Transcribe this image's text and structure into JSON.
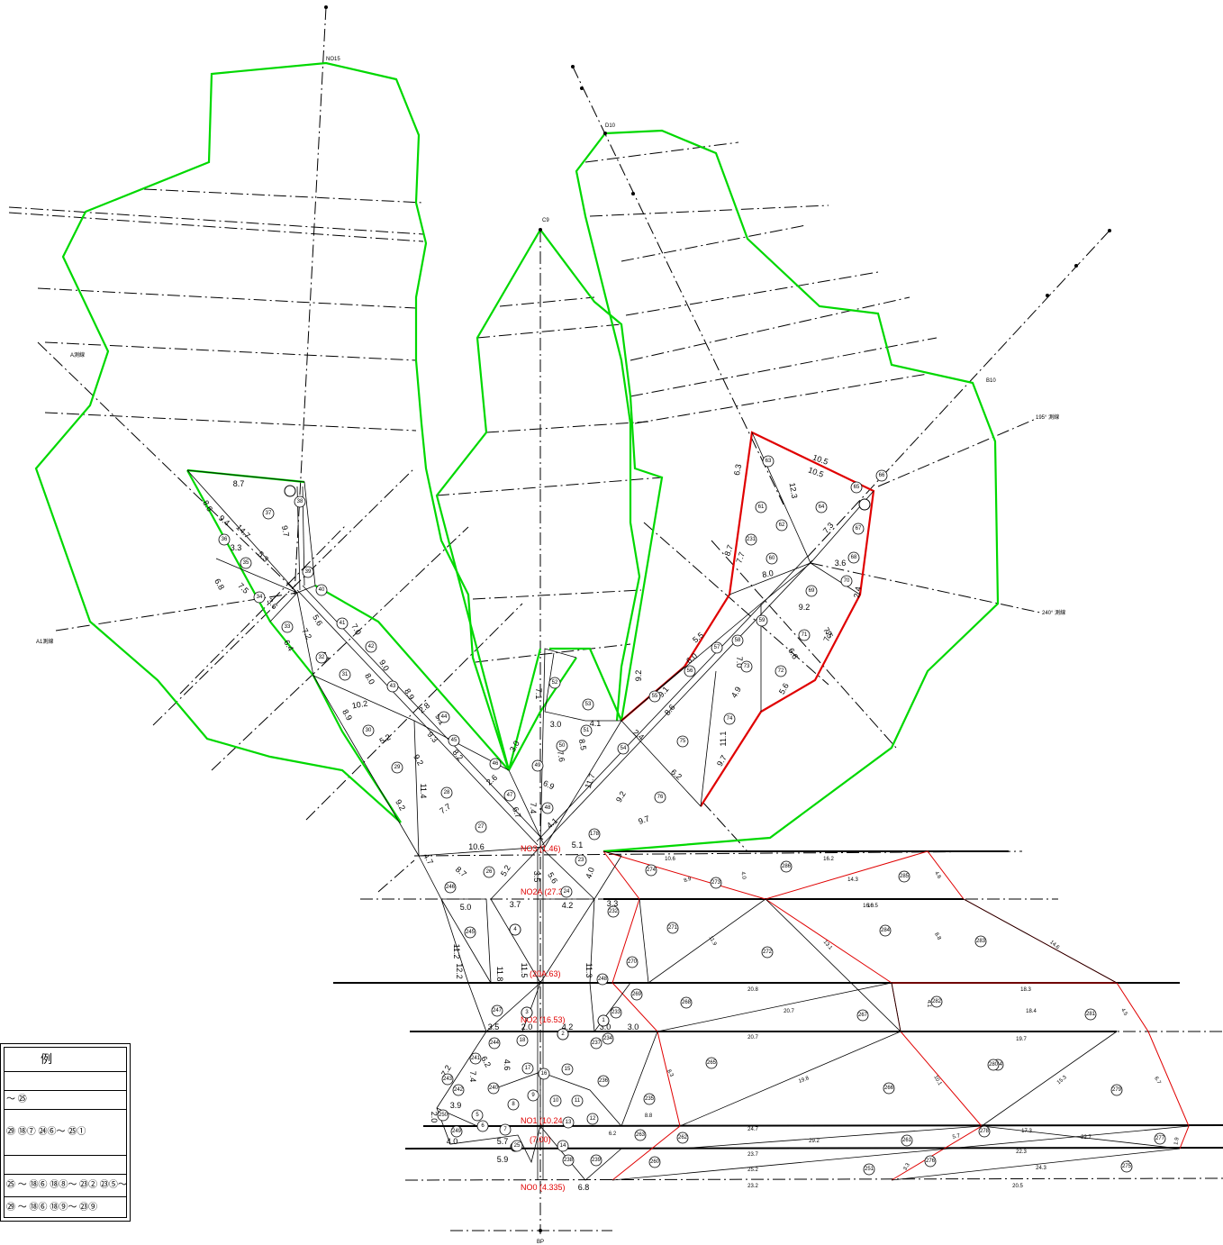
{
  "survey_lines": {
    "no15": "NO15",
    "d10": "D10",
    "c9": "C9",
    "b10": "B10",
    "a_line": "A測線",
    "a1_line": "A1測線",
    "line_195": "195° 測線",
    "line_240": "240° 測線",
    "bp": "BP"
  },
  "stations": {
    "no3": "NO3 (1.46)",
    "no2a": "NO2A (27.3",
    "station_20a": "(20A.63)",
    "no2": "NO2 (16.53)",
    "no1": "NO1 (10.24",
    "station_7": "(7.00)",
    "no0": "NO0 (4.335)"
  },
  "distances": [
    "8.7",
    "8.6",
    "9.4",
    "14.7",
    "9.7",
    "3.3",
    "5.3",
    "6.8",
    "7.5",
    "3.6",
    "6.4",
    "7.2",
    "5.6",
    "4.1",
    "7.0",
    "8.9",
    "9.0",
    "8.0",
    "10.2",
    "5.2",
    "8.9",
    "9.1",
    "9.3",
    "9.2",
    "2.8",
    "8.2",
    "2.6",
    "7.7",
    "3.0",
    "11.4",
    "9.2",
    "6.9",
    "6.7",
    "7.4",
    "4.1",
    "10.6",
    "5.1",
    "4.7",
    "8.7",
    "5.2",
    "3.5",
    "5.6",
    "4.0",
    "5.0",
    "3.7",
    "4.2",
    "3.3",
    "11.2",
    "12.2",
    "11.8",
    "11.5",
    "11.3",
    "3.5",
    "2.0",
    "4.2",
    "3.0",
    "3.0",
    "6.2",
    "4.6",
    "7.2",
    "7.4",
    "3.9",
    "2.0",
    "4.0",
    "5.7",
    "5.9",
    "6.8",
    "7.1",
    "3.0",
    "4.1",
    "8.5",
    "7.6",
    "11.7",
    "9.2",
    "9.7",
    "6.2",
    "9.2",
    "9.1",
    "2.4",
    "8.6",
    "6.0",
    "5.5",
    "7.0",
    "4.9",
    "6.6",
    "7.5",
    "9.2",
    "5.6",
    "8.7",
    "7.7",
    "8.0",
    "6.3",
    "12.3",
    "10.5",
    "10.5",
    "7.3",
    "3.6",
    "2.4",
    "11.1",
    "9.7",
    "7.5"
  ],
  "small_distances": [
    "10.6",
    "8.9",
    "4.0",
    "16.2",
    "14.3",
    "4.6",
    "10.5",
    "16.6",
    "13.1",
    "11.9",
    "8.8",
    "14.6",
    "20.8",
    "18.3",
    "20.7",
    "4.1",
    "18.4",
    "4.5",
    "20.7",
    "19.7",
    "19.8",
    "10.1",
    "15.3",
    "8.3",
    "6.7",
    "24.7",
    "29.2",
    "17.3",
    "22.7",
    "23.7",
    "22.3",
    "25.2",
    "24.3",
    "23.2",
    "20.5",
    "5.7",
    "3.3",
    "4.4",
    "1.9",
    "8.8",
    "6.2"
  ],
  "block_numbers": [
    "19",
    "20",
    "21",
    "22",
    "23",
    "24",
    "25",
    "26",
    "27",
    "28",
    "29",
    "30",
    "31",
    "32",
    "33",
    "34",
    "35",
    "36",
    "37",
    "38",
    "39",
    "40",
    "41",
    "42",
    "43",
    "44",
    "45",
    "46",
    "47",
    "48",
    "49",
    "50",
    "51",
    "52",
    "53",
    "54",
    "55",
    "56",
    "57",
    "58",
    "59",
    "60",
    "61",
    "62",
    "63",
    "64",
    "65",
    "66",
    "67",
    "68",
    "69",
    "70",
    "71",
    "72",
    "73",
    "74",
    "75",
    "76",
    "178",
    "231",
    "232",
    "233",
    "234",
    "235",
    "236",
    "237",
    "238",
    "239",
    "240",
    "241",
    "242",
    "243",
    "244",
    "245",
    "246",
    "247",
    "248",
    "249",
    "250",
    "251",
    "260",
    "261",
    "262",
    "263",
    "264",
    "265",
    "266",
    "267",
    "268",
    "269",
    "270",
    "271",
    "272",
    "273",
    "274",
    "275",
    "276",
    "277",
    "278",
    "279",
    "280",
    "281",
    "282",
    "283",
    "284",
    "285",
    "286",
    "15",
    "16",
    "17",
    "18",
    "14",
    "13",
    "12",
    "11",
    "10",
    "9",
    "8",
    "7",
    "6",
    "5",
    "4",
    "3",
    "2",
    "1"
  ],
  "legend": {
    "title": "例",
    "rows": [
      "",
      "～ ㉕",
      "㉙ ⑱⑦ ㉔⑥～ ㉕①",
      "",
      "㉕ ～ ⑱⑥ ⑱⑧～ ㉓② ㉓⑤～ ㉓⑨",
      "㉙ ～ ⑱⑥ ⑱⑨～ ㉓⑨"
    ]
  },
  "colors": {
    "green": "#00d800",
    "red": "#e00000",
    "black": "#000000"
  }
}
